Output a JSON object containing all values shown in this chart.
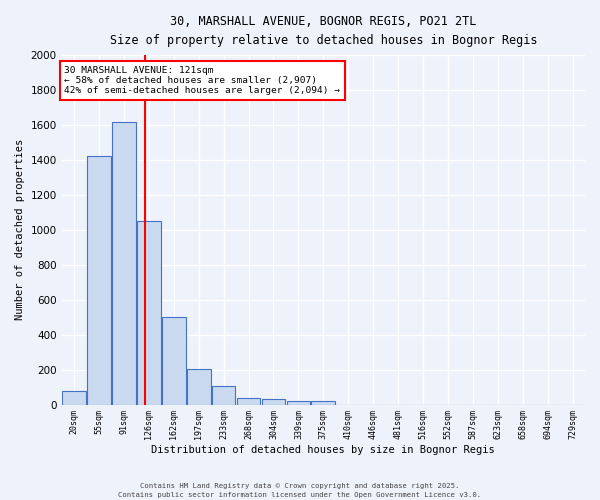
{
  "title1": "30, MARSHALL AVENUE, BOGNOR REGIS, PO21 2TL",
  "title2": "Size of property relative to detached houses in Bognor Regis",
  "xlabel": "Distribution of detached houses by size in Bognor Regis",
  "ylabel": "Number of detached properties",
  "bar_labels": [
    "20sqm",
    "55sqm",
    "91sqm",
    "126sqm",
    "162sqm",
    "197sqm",
    "233sqm",
    "268sqm",
    "304sqm",
    "339sqm",
    "375sqm",
    "410sqm",
    "446sqm",
    "481sqm",
    "516sqm",
    "552sqm",
    "587sqm",
    "623sqm",
    "658sqm",
    "694sqm",
    "729sqm"
  ],
  "bar_values": [
    80,
    1420,
    1620,
    1050,
    500,
    205,
    105,
    40,
    30,
    20,
    18,
    0,
    0,
    0,
    0,
    0,
    0,
    0,
    0,
    0,
    0
  ],
  "bar_color": "#c9d9f0",
  "bar_edge_color": "#4472c4",
  "annotation_line_color": "red",
  "annotation_text_line1": "30 MARSHALL AVENUE: 121sqm",
  "annotation_text_line2": "← 58% of detached houses are smaller (2,907)",
  "annotation_text_line3": "42% of semi-detached houses are larger (2,094) →",
  "annotation_box_color": "white",
  "annotation_box_edge": "red",
  "ylim": [
    0,
    2000
  ],
  "yticks": [
    0,
    200,
    400,
    600,
    800,
    1000,
    1200,
    1400,
    1600,
    1800,
    2000
  ],
  "footer_line1": "Contains HM Land Registry data © Crown copyright and database right 2025.",
  "footer_line2": "Contains public sector information licensed under the Open Government Licence v3.0.",
  "bg_color": "#eef2fb",
  "grid_color": "#ffffff"
}
